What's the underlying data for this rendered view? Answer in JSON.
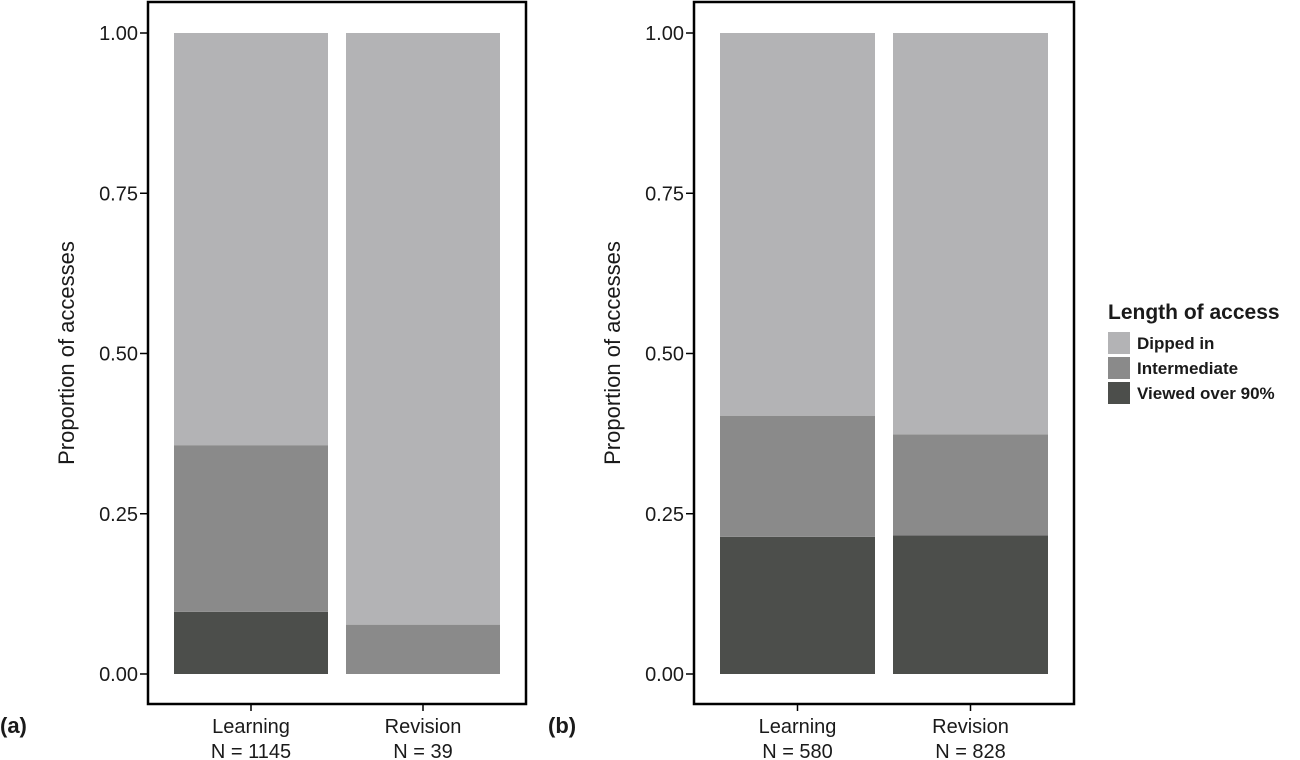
{
  "chart_data": [
    {
      "type": "bar",
      "stacked": true,
      "panel_label": "(a)",
      "ylabel": "Proportion of accesses",
      "ylim": [
        0,
        1
      ],
      "yticks": [
        "0.00",
        "0.25",
        "0.50",
        "0.75",
        "1.00"
      ],
      "categories": [
        "Learning",
        "Revision"
      ],
      "category_n": [
        "N = 1145",
        "N = 39"
      ],
      "series": [
        {
          "name": "Viewed over 90%",
          "values": [
            0.097,
            0.0
          ]
        },
        {
          "name": "Intermediate",
          "values": [
            0.26,
            0.077
          ]
        },
        {
          "name": "Dipped in",
          "values": [
            0.643,
            0.923
          ]
        }
      ]
    },
    {
      "type": "bar",
      "stacked": true,
      "panel_label": "(b)",
      "ylabel": "Proportion of accesses",
      "ylim": [
        0,
        1
      ],
      "yticks": [
        "0.00",
        "0.25",
        "0.50",
        "0.75",
        "1.00"
      ],
      "categories": [
        "Learning",
        "Revision"
      ],
      "category_n": [
        "N = 580",
        "N = 828"
      ],
      "series": [
        {
          "name": "Viewed over 90%",
          "values": [
            0.214,
            0.216
          ]
        },
        {
          "name": "Intermediate",
          "values": [
            0.189,
            0.158
          ]
        },
        {
          "name": "Dipped in",
          "values": [
            0.597,
            0.626
          ]
        }
      ]
    }
  ],
  "legend": {
    "title": "Length of access",
    "items": [
      {
        "label": "Dipped in",
        "color": "#b3b3b5"
      },
      {
        "label": "Intermediate",
        "color": "#8a8a8a"
      },
      {
        "label": "Viewed over 90%",
        "color": "#4c4e4b"
      }
    ]
  }
}
